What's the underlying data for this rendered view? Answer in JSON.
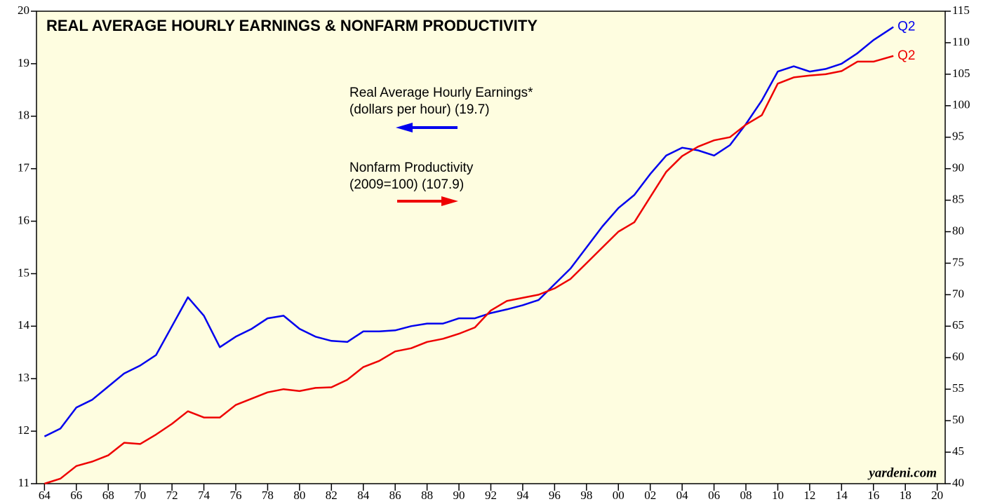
{
  "chart_data": {
    "type": "line",
    "title": "REAL AVERAGE HOURLY EARNINGS & NONFARM PRODUCTIVITY",
    "source": "yardeni.com",
    "x": [
      1964,
      1965,
      1966,
      1967,
      1968,
      1969,
      1970,
      1971,
      1972,
      1973,
      1974,
      1975,
      1976,
      1977,
      1978,
      1979,
      1980,
      1981,
      1982,
      1983,
      1984,
      1985,
      1986,
      1987,
      1988,
      1989,
      1990,
      1991,
      1992,
      1993,
      1994,
      1995,
      1996,
      1997,
      1998,
      1999,
      2000,
      2001,
      2002,
      2003,
      2004,
      2005,
      2006,
      2007,
      2008,
      2009,
      2010,
      2011,
      2012,
      2013,
      2014,
      2015,
      2016,
      2017.25
    ],
    "series": [
      {
        "name": "Real Average Hourly Earnings*",
        "note": "(dollars per hour) (19.7)",
        "end_label": "Q2",
        "color": "#0000ee",
        "axis": "y",
        "values": [
          11.9,
          12.05,
          12.45,
          12.6,
          12.85,
          13.1,
          13.25,
          13.45,
          14.0,
          14.55,
          14.2,
          13.6,
          13.8,
          13.95,
          14.15,
          14.2,
          13.95,
          13.8,
          13.72,
          13.7,
          13.9,
          13.9,
          13.92,
          14.0,
          14.05,
          14.05,
          14.15,
          14.15,
          14.25,
          14.32,
          14.4,
          14.5,
          14.8,
          15.1,
          15.5,
          15.9,
          16.25,
          16.5,
          16.9,
          17.25,
          17.4,
          17.35,
          17.25,
          17.45,
          17.85,
          18.3,
          18.85,
          18.95,
          18.85,
          18.9,
          19.0,
          19.2,
          19.45,
          19.7
        ]
      },
      {
        "name": "Nonfarm Productivity",
        "note": "(2009=100) (107.9)",
        "end_label": "Q2",
        "color": "#ee0000",
        "axis": "y2",
        "values": [
          40,
          40.8,
          42.8,
          43.5,
          44.5,
          46.5,
          46.3,
          47.8,
          49.5,
          51.5,
          50.5,
          50.5,
          52.5,
          53.5,
          54.5,
          55,
          54.7,
          55.2,
          55.3,
          56.5,
          58.5,
          59.5,
          61,
          61.5,
          62.5,
          63,
          63.8,
          64.8,
          67.5,
          69,
          69.5,
          70,
          71,
          72.5,
          75,
          77.5,
          80,
          81.5,
          85.5,
          89.5,
          92,
          93.5,
          94.5,
          95,
          97,
          98.5,
          103.5,
          104.5,
          104.8,
          105,
          105.5,
          107,
          107,
          107.9
        ]
      }
    ],
    "xlim": [
      1963.5,
      2020.5
    ],
    "xticks": [
      {
        "value": 1964,
        "label": "64"
      },
      {
        "value": 1966,
        "label": "66"
      },
      {
        "value": 1968,
        "label": "68"
      },
      {
        "value": 1970,
        "label": "70"
      },
      {
        "value": 1972,
        "label": "72"
      },
      {
        "value": 1974,
        "label": "74"
      },
      {
        "value": 1976,
        "label": "76"
      },
      {
        "value": 1978,
        "label": "78"
      },
      {
        "value": 1980,
        "label": "80"
      },
      {
        "value": 1982,
        "label": "82"
      },
      {
        "value": 1984,
        "label": "84"
      },
      {
        "value": 1986,
        "label": "86"
      },
      {
        "value": 1988,
        "label": "88"
      },
      {
        "value": 1990,
        "label": "90"
      },
      {
        "value": 1992,
        "label": "92"
      },
      {
        "value": 1994,
        "label": "94"
      },
      {
        "value": 1996,
        "label": "96"
      },
      {
        "value": 1998,
        "label": "98"
      },
      {
        "value": 2000,
        "label": "00"
      },
      {
        "value": 2002,
        "label": "02"
      },
      {
        "value": 2004,
        "label": "04"
      },
      {
        "value": 2006,
        "label": "06"
      },
      {
        "value": 2008,
        "label": "08"
      },
      {
        "value": 2010,
        "label": "10"
      },
      {
        "value": 2012,
        "label": "12"
      },
      {
        "value": 2014,
        "label": "14"
      },
      {
        "value": 2016,
        "label": "16"
      },
      {
        "value": 2018,
        "label": "18"
      },
      {
        "value": 2020,
        "label": "20"
      }
    ],
    "ylim": [
      11,
      20
    ],
    "yticks": [
      11,
      12,
      13,
      14,
      15,
      16,
      17,
      18,
      19,
      20
    ],
    "y2lim": [
      40,
      115
    ],
    "y2ticks": [
      40,
      45,
      50,
      55,
      60,
      65,
      70,
      75,
      80,
      85,
      90,
      95,
      100,
      105,
      110,
      115
    ],
    "grid": false
  }
}
